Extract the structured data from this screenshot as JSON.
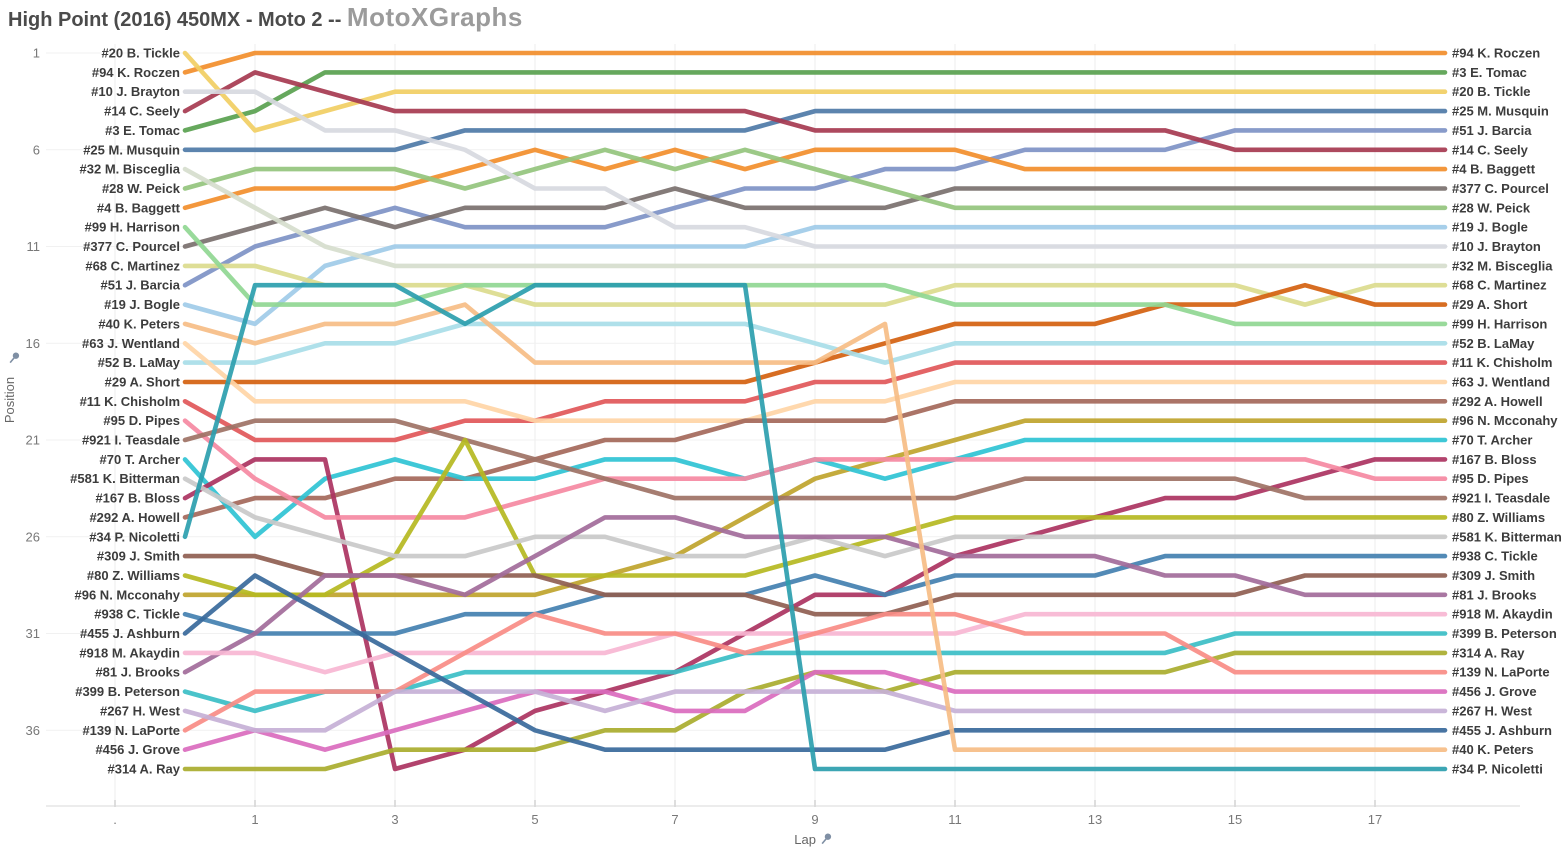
{
  "title": {
    "main": "High Point (2016) 450MX - Moto 2 -- ",
    "brand": "MotoXGraphs"
  },
  "chart_data": {
    "type": "line",
    "title": "High Point (2016) 450MX - Moto 2",
    "xlabel": "Lap",
    "ylabel": "Position",
    "x_tick_labels": [
      ".",
      "1",
      "3",
      "5",
      "7",
      "9",
      "11",
      "13",
      "15",
      "17"
    ],
    "x_tick_laps": [
      -1,
      1,
      3,
      5,
      7,
      9,
      11,
      13,
      15,
      17
    ],
    "y_tick_positions": [
      1,
      6,
      11,
      16,
      21,
      26,
      31,
      36
    ],
    "laps": [
      0,
      1,
      2,
      3,
      4,
      5,
      6,
      7,
      8,
      9,
      10,
      11,
      12,
      13,
      14,
      15,
      16,
      17,
      18
    ],
    "xlim": [
      0,
      18
    ],
    "ylim": [
      1,
      38
    ],
    "grid": "light vertical + horizontal at ticks",
    "legend_position": "edge-labels-left-start-right-finish",
    "series": [
      {
        "num": "#94",
        "name": "K. Roczen",
        "label": "#94 K. Roczen",
        "color": "#f28e2b",
        "start": 2,
        "finish": 1,
        "positions": [
          2,
          1,
          1,
          1,
          1,
          1,
          1,
          1,
          1,
          1,
          1,
          1,
          1,
          1,
          1,
          1,
          1,
          1,
          1
        ]
      },
      {
        "num": "#3",
        "name": "E. Tomac",
        "label": "#3 E. Tomac",
        "color": "#59a14f",
        "start": 5,
        "finish": 2,
        "positions": [
          5,
          4,
          2,
          2,
          2,
          2,
          2,
          2,
          2,
          2,
          2,
          2,
          2,
          2,
          2,
          2,
          2,
          2,
          2
        ]
      },
      {
        "num": "#20",
        "name": "B. Tickle",
        "label": "#20 B. Tickle",
        "color": "#f1ce63",
        "start": 1,
        "finish": 3,
        "positions": [
          1,
          5,
          4,
          3,
          3,
          3,
          3,
          3,
          3,
          3,
          3,
          3,
          3,
          3,
          3,
          3,
          3,
          3,
          3
        ]
      },
      {
        "num": "#25",
        "name": "M. Musquin",
        "label": "#25 M. Musquin",
        "color": "#4e79a7",
        "start": 6,
        "finish": 4,
        "positions": [
          6,
          6,
          6,
          6,
          5,
          5,
          5,
          5,
          5,
          4,
          4,
          4,
          4,
          4,
          4,
          4,
          4,
          4,
          4
        ]
      },
      {
        "num": "#51",
        "name": "J. Barcia",
        "label": "#51 J. Barcia",
        "color": "#7e93c5",
        "start": 13,
        "finish": 5,
        "positions": [
          13,
          11,
          10,
          9,
          10,
          10,
          10,
          9,
          8,
          8,
          7,
          7,
          6,
          6,
          6,
          5,
          5,
          5,
          5
        ]
      },
      {
        "num": "#14",
        "name": "C. Seely",
        "label": "#14 C. Seely",
        "color": "#a63950",
        "start": 4,
        "finish": 6,
        "positions": [
          4,
          2,
          3,
          4,
          4,
          4,
          4,
          4,
          4,
          5,
          5,
          5,
          5,
          5,
          5,
          6,
          6,
          6,
          6
        ]
      },
      {
        "num": "#4",
        "name": "B. Baggett",
        "label": "#4 B. Baggett",
        "color": "#f28e2b",
        "start": 9,
        "finish": 7,
        "positions": [
          9,
          8,
          8,
          8,
          7,
          6,
          7,
          6,
          7,
          6,
          6,
          6,
          7,
          7,
          7,
          7,
          7,
          7,
          7
        ]
      },
      {
        "num": "#377",
        "name": "C. Pourcel",
        "label": "#377 C. Pourcel",
        "color": "#79706e",
        "start": 11,
        "finish": 8,
        "positions": [
          11,
          10,
          9,
          10,
          9,
          9,
          9,
          8,
          9,
          9,
          9,
          8,
          8,
          8,
          8,
          8,
          8,
          8,
          8
        ]
      },
      {
        "num": "#28",
        "name": "W. Peick",
        "label": "#28 W. Peick",
        "color": "#94c47d",
        "start": 8,
        "finish": 9,
        "positions": [
          8,
          7,
          7,
          7,
          8,
          7,
          6,
          7,
          6,
          7,
          8,
          9,
          9,
          9,
          9,
          9,
          9,
          9,
          9
        ]
      },
      {
        "num": "#19",
        "name": "J. Bogle",
        "label": "#19 J. Bogle",
        "color": "#a0cbe8",
        "start": 14,
        "finish": 10,
        "positions": [
          14,
          15,
          12,
          11,
          11,
          11,
          11,
          11,
          11,
          10,
          10,
          10,
          10,
          10,
          10,
          10,
          10,
          10,
          10
        ]
      },
      {
        "num": "#10",
        "name": "J. Brayton",
        "label": "#10 J. Brayton",
        "color": "#d7d9e0",
        "start": 3,
        "finish": 11,
        "positions": [
          3,
          3,
          5,
          5,
          6,
          8,
          8,
          10,
          10,
          11,
          11,
          11,
          11,
          11,
          11,
          11,
          11,
          11,
          11
        ]
      },
      {
        "num": "#32",
        "name": "M. Bisceglia",
        "label": "#32 M. Bisceglia",
        "color": "#d6ddcd",
        "start": 7,
        "finish": 12,
        "positions": [
          7,
          9,
          11,
          12,
          12,
          12,
          12,
          12,
          12,
          12,
          12,
          12,
          12,
          12,
          12,
          12,
          12,
          12,
          12
        ]
      },
      {
        "num": "#68",
        "name": "C. Martinez",
        "label": "#68 C. Martinez",
        "color": "#dbdb8d",
        "start": 12,
        "finish": 13,
        "positions": [
          12,
          12,
          13,
          13,
          13,
          14,
          14,
          14,
          14,
          14,
          14,
          13,
          13,
          13,
          13,
          13,
          14,
          13,
          13
        ]
      },
      {
        "num": "#29",
        "name": "A. Short",
        "label": "#29 A. Short",
        "color": "#d4610f",
        "start": 18,
        "finish": 14,
        "positions": [
          18,
          18,
          18,
          18,
          18,
          18,
          18,
          18,
          18,
          17,
          16,
          15,
          15,
          15,
          14,
          14,
          13,
          14,
          14
        ]
      },
      {
        "num": "#99",
        "name": "H. Harrison",
        "label": "#99 H. Harrison",
        "color": "#90d793",
        "start": 10,
        "finish": 15,
        "positions": [
          10,
          14,
          14,
          14,
          13,
          13,
          13,
          13,
          13,
          13,
          13,
          14,
          14,
          14,
          14,
          15,
          15,
          15,
          15
        ]
      },
      {
        "num": "#52",
        "name": "B. LaMay",
        "label": "#52 B. LaMay",
        "color": "#a8dde8",
        "start": 17,
        "finish": 16,
        "positions": [
          17,
          17,
          16,
          16,
          15,
          15,
          15,
          15,
          15,
          16,
          17,
          16,
          16,
          16,
          16,
          16,
          16,
          16,
          16
        ]
      },
      {
        "num": "#11",
        "name": "K. Chisholm",
        "label": "#11 K. Chisholm",
        "color": "#e15759",
        "start": 19,
        "finish": 17,
        "positions": [
          19,
          21,
          21,
          21,
          20,
          20,
          19,
          19,
          19,
          18,
          18,
          17,
          17,
          17,
          17,
          17,
          17,
          17,
          17
        ]
      },
      {
        "num": "#63",
        "name": "J. Wentland",
        "label": "#63 J. Wentland",
        "color": "#ffd5a6",
        "start": 16,
        "finish": 18,
        "positions": [
          16,
          19,
          19,
          19,
          19,
          20,
          20,
          20,
          20,
          19,
          19,
          18,
          18,
          18,
          18,
          18,
          18,
          18,
          18
        ]
      },
      {
        "num": "#292",
        "name": "A. Howell",
        "label": "#292 A. Howell",
        "color": "#a4685a",
        "start": 25,
        "finish": 19,
        "positions": [
          25,
          24,
          24,
          23,
          23,
          22,
          21,
          21,
          20,
          20,
          20,
          19,
          19,
          19,
          19,
          19,
          19,
          19,
          19
        ]
      },
      {
        "num": "#96",
        "name": "N. Mcconahy",
        "label": "#96 N. Mcconahy",
        "color": "#bfa42c",
        "start": 29,
        "finish": 20,
        "positions": [
          29,
          29,
          29,
          29,
          29,
          29,
          28,
          27,
          25,
          23,
          22,
          21,
          20,
          20,
          20,
          20,
          20,
          20,
          20
        ]
      },
      {
        "num": "#70",
        "name": "T. Archer",
        "label": "#70 T. Archer",
        "color": "#2fc3d4",
        "start": 22,
        "finish": 21,
        "positions": [
          22,
          26,
          23,
          22,
          23,
          23,
          22,
          22,
          23,
          22,
          23,
          22,
          21,
          21,
          21,
          21,
          21,
          21,
          21
        ]
      },
      {
        "num": "#167",
        "name": "B. Bloss",
        "label": "#167 B. Bloss",
        "color": "#ab3361",
        "start": 24,
        "finish": 22,
        "positions": [
          24,
          22,
          22,
          38,
          37,
          35,
          34,
          33,
          31,
          29,
          29,
          27,
          26,
          25,
          24,
          24,
          23,
          22,
          22
        ]
      },
      {
        "num": "#95",
        "name": "D. Pipes",
        "label": "#95 D. Pipes",
        "color": "#f589a2",
        "start": 20,
        "finish": 23,
        "positions": [
          20,
          23,
          25,
          25,
          25,
          24,
          23,
          23,
          23,
          22,
          22,
          22,
          22,
          22,
          22,
          22,
          22,
          23,
          23
        ]
      },
      {
        "num": "#921",
        "name": "I. Teasdale",
        "label": "#921 I. Teasdale",
        "color": "#9e7265",
        "start": 21,
        "finish": 24,
        "positions": [
          21,
          20,
          20,
          20,
          21,
          22,
          23,
          24,
          24,
          24,
          24,
          24,
          23,
          23,
          23,
          23,
          24,
          24,
          24
        ]
      },
      {
        "num": "#80",
        "name": "Z. Williams",
        "label": "#80 Z. Williams",
        "color": "#b5b821",
        "start": 28,
        "finish": 25,
        "positions": [
          28,
          29,
          29,
          27,
          21,
          28,
          28,
          28,
          28,
          27,
          26,
          25,
          25,
          25,
          25,
          25,
          25,
          25,
          25
        ]
      },
      {
        "num": "#581",
        "name": "K. Bitterman",
        "label": "#581 K. Bitterman",
        "color": "#c9c9c9",
        "start": 23,
        "finish": 26,
        "positions": [
          23,
          25,
          26,
          27,
          27,
          26,
          26,
          27,
          27,
          26,
          27,
          26,
          26,
          26,
          26,
          26,
          26,
          26,
          26
        ]
      },
      {
        "num": "#938",
        "name": "C. Tickle",
        "label": "#938 C. Tickle",
        "color": "#4380b0",
        "start": 30,
        "finish": 27,
        "positions": [
          30,
          31,
          31,
          31,
          30,
          30,
          29,
          29,
          29,
          28,
          29,
          28,
          28,
          28,
          27,
          27,
          27,
          27,
          27
        ]
      },
      {
        "num": "#309",
        "name": "J. Smith",
        "label": "#309 J. Smith",
        "color": "#8f5e51",
        "start": 27,
        "finish": 28,
        "positions": [
          27,
          27,
          28,
          28,
          28,
          28,
          29,
          29,
          29,
          30,
          30,
          29,
          29,
          29,
          29,
          29,
          28,
          28,
          28
        ]
      },
      {
        "num": "#81",
        "name": "J. Brooks",
        "label": "#81 J. Brooks",
        "color": "#a26b9a",
        "start": 33,
        "finish": 29,
        "positions": [
          33,
          31,
          28,
          28,
          29,
          27,
          25,
          25,
          26,
          26,
          26,
          27,
          27,
          27,
          28,
          28,
          29,
          29,
          29
        ]
      },
      {
        "num": "#918",
        "name": "M. Akaydin",
        "label": "#918 M. Akaydin",
        "color": "#f7b6d2",
        "start": 32,
        "finish": 30,
        "positions": [
          32,
          32,
          33,
          32,
          32,
          32,
          32,
          31,
          31,
          31,
          31,
          31,
          30,
          30,
          30,
          30,
          30,
          30,
          30
        ]
      },
      {
        "num": "#399",
        "name": "B. Peterson",
        "label": "#399 B. Peterson",
        "color": "#3bbec6",
        "start": 34,
        "finish": 31,
        "positions": [
          34,
          35,
          34,
          34,
          33,
          33,
          33,
          33,
          32,
          32,
          32,
          32,
          32,
          32,
          32,
          31,
          31,
          31,
          31
        ]
      },
      {
        "num": "#314",
        "name": "A. Ray",
        "label": "#314 A. Ray",
        "color": "#a9ad2e",
        "start": 38,
        "finish": 32,
        "positions": [
          38,
          38,
          38,
          37,
          37,
          37,
          36,
          36,
          34,
          33,
          34,
          33,
          33,
          33,
          33,
          32,
          32,
          32,
          32
        ]
      },
      {
        "num": "#139",
        "name": "N. LaPorte",
        "label": "#139 N. LaPorte",
        "color": "#f98c86",
        "start": 36,
        "finish": 33,
        "positions": [
          36,
          34,
          34,
          34,
          32,
          30,
          31,
          31,
          32,
          31,
          30,
          30,
          31,
          31,
          31,
          33,
          33,
          33,
          33
        ]
      },
      {
        "num": "#456",
        "name": "J. Grove",
        "label": "#456 J. Grove",
        "color": "#da6bbe",
        "start": 37,
        "finish": 34,
        "positions": [
          37,
          36,
          37,
          36,
          35,
          34,
          34,
          35,
          35,
          33,
          33,
          34,
          34,
          34,
          34,
          34,
          34,
          34,
          34
        ]
      },
      {
        "num": "#267",
        "name": "H. West",
        "label": "#267 H. West",
        "color": "#c5b0d6",
        "start": 35,
        "finish": 35,
        "positions": [
          35,
          36,
          36,
          34,
          34,
          34,
          35,
          34,
          34,
          34,
          34,
          35,
          35,
          35,
          35,
          35,
          35,
          35,
          35
        ]
      },
      {
        "num": "#455",
        "name": "J. Ashburn",
        "label": "#455 J. Ashburn",
        "color": "#38699b",
        "start": 31,
        "finish": 36,
        "positions": [
          31,
          28,
          30,
          32,
          34,
          36,
          37,
          37,
          37,
          37,
          37,
          36,
          36,
          36,
          36,
          36,
          36,
          36,
          36
        ]
      },
      {
        "num": "#40",
        "name": "K. Peters",
        "label": "#40 K. Peters",
        "color": "#f6bd85",
        "start": 15,
        "finish": 37,
        "positions": [
          15,
          16,
          15,
          15,
          14,
          17,
          17,
          17,
          17,
          17,
          15,
          37,
          37,
          37,
          37,
          37,
          37,
          37,
          37
        ]
      },
      {
        "num": "#34",
        "name": "P. Nicoletti",
        "label": "#34 P. Nicoletti",
        "color": "#2b9eae",
        "start": 26,
        "finish": 38,
        "positions": [
          26,
          13,
          13,
          13,
          15,
          13,
          13,
          13,
          13,
          38,
          38,
          38,
          38,
          38,
          38,
          38,
          38,
          38,
          38
        ]
      }
    ]
  },
  "layout_colors": {
    "grid": "#ececec",
    "axis_line": "#d8d8d8",
    "tick_text": "#787878",
    "axis_title_text": "#666666",
    "pin_icon": "#7f8fa4",
    "title_main": "#4b4b4b",
    "title_brand": "#9b9b9b"
  }
}
